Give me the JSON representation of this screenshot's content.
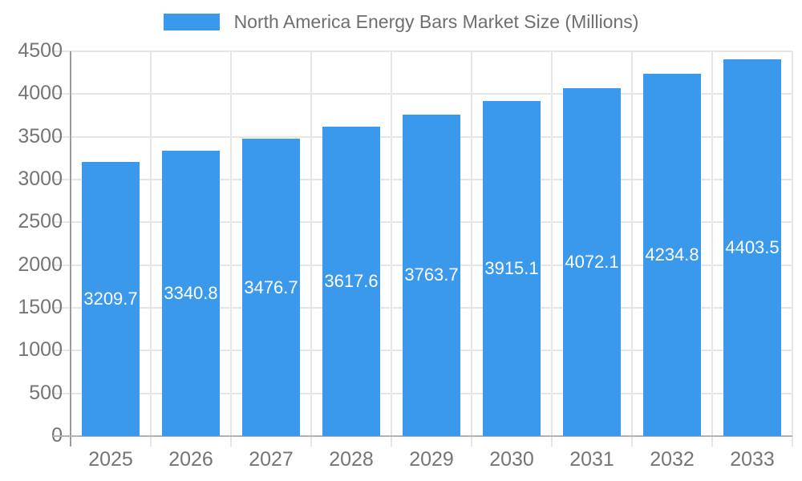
{
  "chart_data": {
    "type": "bar",
    "title": "North America Energy Bars Market Size (Millions)",
    "categories": [
      "2025",
      "2026",
      "2027",
      "2028",
      "2029",
      "2030",
      "2031",
      "2032",
      "2033"
    ],
    "values": [
      3209.7,
      3340.8,
      3476.7,
      3617.6,
      3763.7,
      3915.1,
      4072.1,
      4234.8,
      4403.5
    ],
    "xlabel": "",
    "ylabel": "",
    "ylim": [
      0,
      4500
    ],
    "ytick_step": 500,
    "grid": "on",
    "legend_position": "top-center",
    "colors": {
      "bar": "#3B99EC",
      "bar_value_label": "#FFFFFF",
      "gridline": "#E6E6E6",
      "y_axis_line": "#9C9C9C",
      "x_axis_line": "#B3B3B3",
      "axis_tick_label": "#757575",
      "legend_text": "#6E6E6E",
      "background": "#FFFFFF"
    }
  }
}
